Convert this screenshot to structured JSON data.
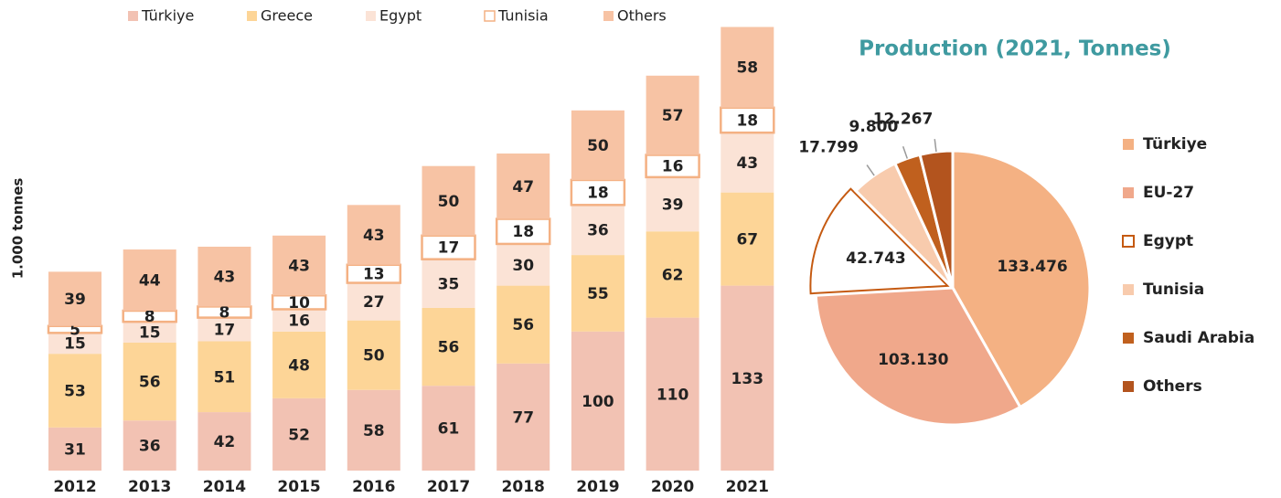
{
  "chart_data": [
    {
      "type": "bar",
      "stacked": true,
      "ylabel": "1.000 tonnes",
      "categories": [
        "2012",
        "2013",
        "2014",
        "2015",
        "2016",
        "2017",
        "2018",
        "2019",
        "2020",
        "2021"
      ],
      "series": [
        {
          "name": "Türkiye",
          "color": "#f2c2b3",
          "values": [
            31,
            36,
            42,
            52,
            58,
            61,
            77,
            100,
            110,
            133
          ]
        },
        {
          "name": "Greece",
          "color": "#fdd597",
          "values": [
            53,
            56,
            51,
            48,
            50,
            56,
            56,
            55,
            62,
            67
          ]
        },
        {
          "name": "Egypt",
          "color": "#fbe3d6",
          "values": [
            15,
            15,
            17,
            16,
            27,
            35,
            30,
            36,
            39,
            43
          ]
        },
        {
          "name": "Tunisia",
          "color": "#ffffff",
          "edgecolor": "#f4b183",
          "values": [
            5,
            8,
            8,
            10,
            13,
            17,
            18,
            18,
            16,
            18
          ]
        },
        {
          "name": "Others",
          "color": "#f7c3a4",
          "values": [
            39,
            44,
            43,
            43,
            43,
            50,
            47,
            50,
            57,
            58
          ]
        }
      ],
      "ylim": [
        0,
        320
      ],
      "legend": "top"
    },
    {
      "type": "pie",
      "title": "Production (2021, Tonnes)",
      "categories": [
        "Türkiye",
        "EU-27",
        "Egypt",
        "Tunisia",
        "Saudi Arabia",
        "Others"
      ],
      "values": [
        133476,
        103130,
        42743,
        17799,
        9800,
        12267
      ],
      "value_labels": [
        "133.476",
        "103.130",
        "42.743",
        "17.799",
        "9.800",
        "12.267"
      ],
      "colors": [
        "#f4b183",
        "#f0a88b",
        "#ffffff",
        "#f8cbad",
        "#c0601e",
        "#b3541e"
      ],
      "edgecolors": [
        "#ffffff",
        "#ffffff",
        "#c55a11",
        "#ffffff",
        "#ffffff",
        "#ffffff"
      ],
      "legend": "right"
    }
  ]
}
